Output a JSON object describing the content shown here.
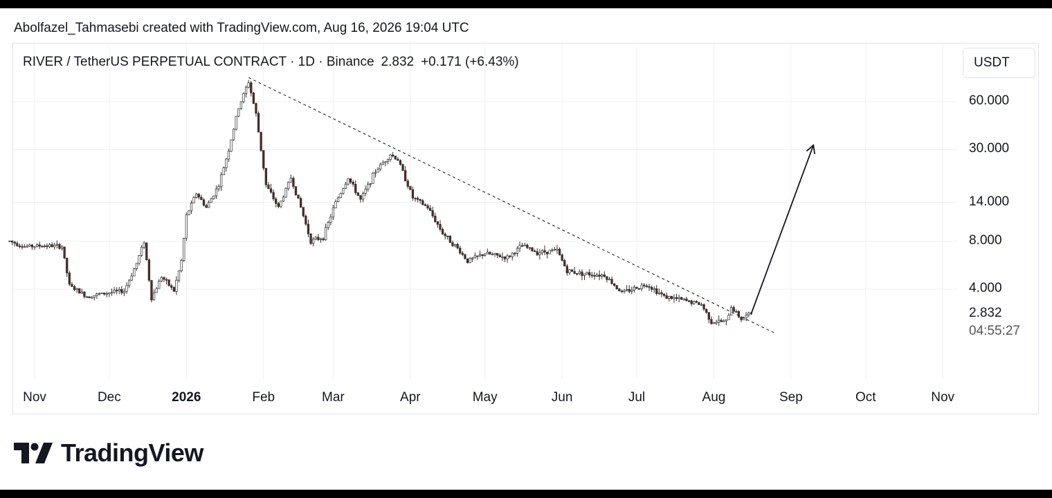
{
  "credit": "Abolfazel_Tahmasebi created with TradingView.com, Aug 16, 2026 19:04 UTC",
  "legend": {
    "symbol": "RIVER / TetherUS PERPETUAL CONTRACT · 1D · Binance",
    "price": "2.832",
    "change": "+0.171 (+6.43%)"
  },
  "currency": "USDT",
  "price_tag": "2.832",
  "countdown": "04:55:27",
  "brand": "TradingView",
  "colors": {
    "up": "#ffffff",
    "down": "#5b2a24",
    "wick": "#2b2b2b",
    "grid": "#eef0f4"
  },
  "chart_data": {
    "type": "candlestick",
    "title": "RIVER / TetherUS PERPETUAL CONTRACT · 1D · Binance",
    "scale": "log",
    "y_ticks": [
      "60.000",
      "30.000",
      "14.000",
      "8.000",
      "4.000"
    ],
    "y_tick_values": [
      60,
      30,
      14,
      8,
      4
    ],
    "x_ticks": [
      "Nov",
      "Dec",
      "2026",
      "Feb",
      "Mar",
      "Apr",
      "May",
      "Jun",
      "Jul",
      "Aug",
      "Sep",
      "Oct",
      "Nov"
    ],
    "x_tick_dates": [
      "2025-11-01",
      "2025-12-01",
      "2026-01-01",
      "2026-02-01",
      "2026-03-01",
      "2026-04-01",
      "2026-05-01",
      "2026-06-01",
      "2026-07-01",
      "2026-08-01",
      "2026-09-01",
      "2026-10-01",
      "2026-11-01"
    ],
    "close_path": [
      [
        "2025-10-22",
        8.0
      ],
      [
        "2025-10-28",
        7.4
      ],
      [
        "2025-11-05",
        7.5
      ],
      [
        "2025-11-12",
        7.4
      ],
      [
        "2025-11-15",
        4.2
      ],
      [
        "2025-11-22",
        3.6
      ],
      [
        "2025-12-01",
        3.8
      ],
      [
        "2025-12-07",
        3.9
      ],
      [
        "2025-12-12",
        5.8
      ],
      [
        "2025-12-15",
        8.0
      ],
      [
        "2025-12-18",
        3.5
      ],
      [
        "2025-12-22",
        4.8
      ],
      [
        "2025-12-27",
        3.9
      ],
      [
        "2025-12-30",
        6.0
      ],
      [
        "2026-01-01",
        11.5
      ],
      [
        "2026-01-05",
        16.0
      ],
      [
        "2026-01-09",
        13.0
      ],
      [
        "2026-01-14",
        18.0
      ],
      [
        "2026-01-18",
        30.0
      ],
      [
        "2026-01-22",
        55.0
      ],
      [
        "2026-01-26",
        80.0
      ],
      [
        "2026-01-29",
        50.0
      ],
      [
        "2026-02-02",
        18.0
      ],
      [
        "2026-02-07",
        13.0
      ],
      [
        "2026-02-12",
        20.0
      ],
      [
        "2026-02-16",
        13.0
      ],
      [
        "2026-02-20",
        8.0
      ],
      [
        "2026-02-25",
        8.5
      ],
      [
        "2026-03-02",
        14.0
      ],
      [
        "2026-03-07",
        20.0
      ],
      [
        "2026-03-12",
        14.5
      ],
      [
        "2026-03-18",
        22.0
      ],
      [
        "2026-03-24",
        28.0
      ],
      [
        "2026-03-27",
        26.0
      ],
      [
        "2026-04-02",
        15.0
      ],
      [
        "2026-04-08",
        13.0
      ],
      [
        "2026-04-14",
        9.0
      ],
      [
        "2026-04-20",
        7.2
      ],
      [
        "2026-04-24",
        6.0
      ],
      [
        "2026-05-01",
        6.7
      ],
      [
        "2026-05-10",
        6.3
      ],
      [
        "2026-05-16",
        7.5
      ],
      [
        "2026-05-22",
        6.8
      ],
      [
        "2026-05-30",
        7.0
      ],
      [
        "2026-06-03",
        5.2
      ],
      [
        "2026-06-10",
        5.0
      ],
      [
        "2026-06-18",
        4.9
      ],
      [
        "2026-06-25",
        3.8
      ],
      [
        "2026-07-05",
        4.3
      ],
      [
        "2026-07-12",
        3.6
      ],
      [
        "2026-07-20",
        3.4
      ],
      [
        "2026-07-27",
        3.2
      ],
      [
        "2026-07-31",
        2.5
      ],
      [
        "2026-08-06",
        2.5
      ],
      [
        "2026-08-08",
        3.1
      ],
      [
        "2026-08-12",
        2.6
      ],
      [
        "2026-08-16",
        2.832
      ]
    ],
    "trendline": [
      [
        "2026-01-26",
        85.0
      ],
      [
        "2026-08-26",
        2.1
      ]
    ],
    "projection_arrow": [
      [
        "2026-08-16",
        2.8
      ],
      [
        "2026-09-10",
        32.0
      ]
    ]
  }
}
